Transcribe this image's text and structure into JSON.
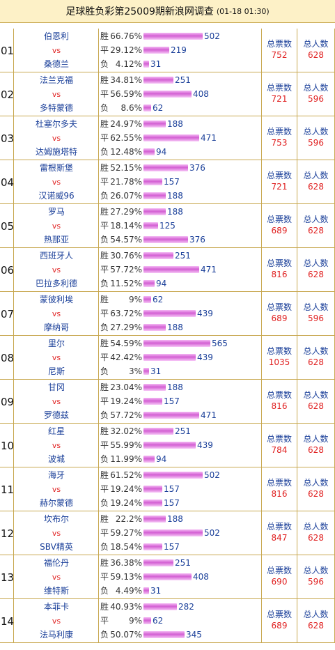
{
  "header": {
    "title": "足球胜负彩第25009期新浪网调查",
    "time": "(01-18 01:30)"
  },
  "labels": {
    "win": "胜",
    "draw": "平",
    "lose": "负",
    "vs": "vs",
    "total_votes": "总票数",
    "total_people": "总人数"
  },
  "matches": [
    {
      "num": "01",
      "home": "伯恩利",
      "away": "桑德兰",
      "win": {
        "pct": "66.76%",
        "count": 502
      },
      "draw": {
        "pct": "29.12%",
        "count": 219
      },
      "lose": {
        "pct": "4.12%",
        "count": 31
      },
      "votes": "752",
      "people": "628"
    },
    {
      "num": "02",
      "home": "法兰克福",
      "away": "多特蒙德",
      "win": {
        "pct": "34.81%",
        "count": 251
      },
      "draw": {
        "pct": "56.59%",
        "count": 408
      },
      "lose": {
        "pct": "8.6%",
        "count": 62
      },
      "votes": "721",
      "people": "596"
    },
    {
      "num": "03",
      "home": "杜塞尔多夫",
      "away": "达姆施塔特",
      "win": {
        "pct": "24.97%",
        "count": 188
      },
      "draw": {
        "pct": "62.55%",
        "count": 471
      },
      "lose": {
        "pct": "12.48%",
        "count": 94
      },
      "votes": "753",
      "people": "596"
    },
    {
      "num": "04",
      "home": "雷根斯堡",
      "away": "汉诺威96",
      "win": {
        "pct": "52.15%",
        "count": 376
      },
      "draw": {
        "pct": "21.78%",
        "count": 157
      },
      "lose": {
        "pct": "26.07%",
        "count": 188
      },
      "votes": "721",
      "people": "628"
    },
    {
      "num": "05",
      "home": "罗马",
      "away": "热那亚",
      "win": {
        "pct": "27.29%",
        "count": 188
      },
      "draw": {
        "pct": "18.14%",
        "count": 125
      },
      "lose": {
        "pct": "54.57%",
        "count": 376
      },
      "votes": "689",
      "people": "628"
    },
    {
      "num": "06",
      "home": "西班牙人",
      "away": "巴拉多利德",
      "win": {
        "pct": "30.76%",
        "count": 251
      },
      "draw": {
        "pct": "57.72%",
        "count": 471
      },
      "lose": {
        "pct": "11.52%",
        "count": 94
      },
      "votes": "816",
      "people": "628"
    },
    {
      "num": "07",
      "home": "蒙彼利埃",
      "away": "摩纳哥",
      "win": {
        "pct": "9%",
        "count": 62
      },
      "draw": {
        "pct": "63.72%",
        "count": 439
      },
      "lose": {
        "pct": "27.29%",
        "count": 188
      },
      "votes": "689",
      "people": "596"
    },
    {
      "num": "08",
      "home": "里尔",
      "away": "尼斯",
      "win": {
        "pct": "54.59%",
        "count": 565
      },
      "draw": {
        "pct": "42.42%",
        "count": 439
      },
      "lose": {
        "pct": "3%",
        "count": 31
      },
      "votes": "1035",
      "people": "628"
    },
    {
      "num": "09",
      "home": "甘冈",
      "away": "罗德兹",
      "win": {
        "pct": "23.04%",
        "count": 188
      },
      "draw": {
        "pct": "19.24%",
        "count": 157
      },
      "lose": {
        "pct": "57.72%",
        "count": 471
      },
      "votes": "816",
      "people": "628"
    },
    {
      "num": "10",
      "home": "红星",
      "away": "波城",
      "win": {
        "pct": "32.02%",
        "count": 251
      },
      "draw": {
        "pct": "55.99%",
        "count": 439
      },
      "lose": {
        "pct": "11.99%",
        "count": 94
      },
      "votes": "784",
      "people": "628"
    },
    {
      "num": "11",
      "home": "海牙",
      "away": "赫尔蒙德",
      "win": {
        "pct": "61.52%",
        "count": 502
      },
      "draw": {
        "pct": "19.24%",
        "count": 157
      },
      "lose": {
        "pct": "19.24%",
        "count": 157
      },
      "votes": "816",
      "people": "628"
    },
    {
      "num": "12",
      "home": "坎布尔",
      "away": "SBV精英",
      "win": {
        "pct": "22.2%",
        "count": 188
      },
      "draw": {
        "pct": "59.27%",
        "count": 502
      },
      "lose": {
        "pct": "18.54%",
        "count": 157
      },
      "votes": "847",
      "people": "628"
    },
    {
      "num": "13",
      "home": "福伦丹",
      "away": "维特斯",
      "win": {
        "pct": "36.38%",
        "count": 251
      },
      "draw": {
        "pct": "59.13%",
        "count": 408
      },
      "lose": {
        "pct": "4.49%",
        "count": 31
      },
      "votes": "690",
      "people": "596"
    },
    {
      "num": "14",
      "home": "本菲卡",
      "away": "法马利康",
      "win": {
        "pct": "40.93%",
        "count": 282
      },
      "draw": {
        "pct": "9%",
        "count": 62
      },
      "lose": {
        "pct": "50.07%",
        "count": 345
      },
      "votes": "689",
      "people": "628"
    }
  ]
}
